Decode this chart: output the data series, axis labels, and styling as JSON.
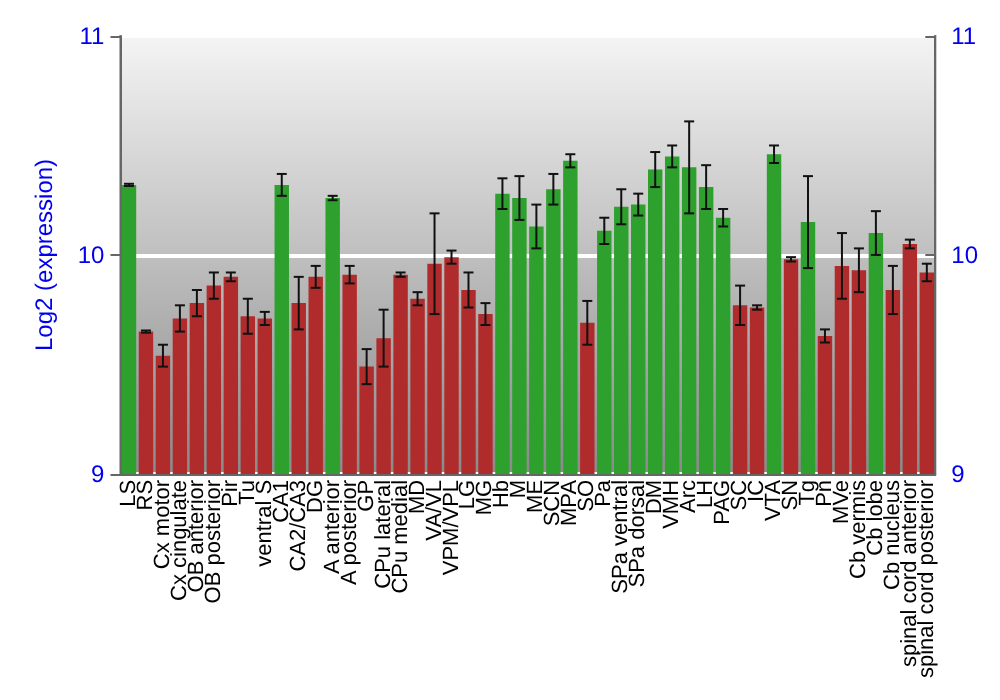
{
  "chart_data": {
    "type": "bar",
    "ylabel": "Log2 (expression)",
    "categories": [
      "LS",
      "RS",
      "Cx motor",
      "Cx cingulate",
      "OB anterior",
      "OB posterior",
      "Pir",
      "Tu",
      "ventral S",
      "CA1",
      "CA2/CA3",
      "DG",
      "A anterior",
      "A posterior",
      "GP",
      "CPu lateral",
      "CPu medial",
      "MD",
      "VA/VL",
      "VPM/VPL",
      "LG",
      "MG",
      "Hb",
      "M",
      "ME",
      "SCN",
      "MPA",
      "SO",
      "Pa",
      "SPa ventral",
      "SPa dorsal",
      "DM",
      "VMH",
      "Arc",
      "LH",
      "PAG",
      "SC",
      "IC",
      "VTA",
      "SN",
      "Tg",
      "Pn",
      "MVe",
      "Cb vermis",
      "Cb lobe",
      "Cb nucleus",
      "spinal cord anterior",
      "spinal cord posterior"
    ],
    "values": [
      10.32,
      9.65,
      9.54,
      9.71,
      9.78,
      9.86,
      9.9,
      9.72,
      9.71,
      10.32,
      9.78,
      9.9,
      10.26,
      9.91,
      9.49,
      9.62,
      9.91,
      9.8,
      9.96,
      9.99,
      9.84,
      9.73,
      10.28,
      10.26,
      10.13,
      10.3,
      10.43,
      9.69,
      10.11,
      10.22,
      10.23,
      10.39,
      10.45,
      10.4,
      10.31,
      10.17,
      9.77,
      9.76,
      10.46,
      9.98,
      10.15,
      9.63,
      9.95,
      9.93,
      10.1,
      9.84,
      10.05,
      9.92
    ],
    "errors": [
      0.005,
      0.005,
      0.05,
      0.06,
      0.06,
      0.06,
      0.02,
      0.08,
      0.03,
      0.05,
      0.12,
      0.05,
      0.01,
      0.04,
      0.08,
      0.13,
      0.01,
      0.03,
      0.23,
      0.03,
      0.08,
      0.05,
      0.07,
      0.1,
      0.1,
      0.07,
      0.03,
      0.1,
      0.06,
      0.08,
      0.05,
      0.08,
      0.05,
      0.21,
      0.1,
      0.04,
      0.09,
      0.01,
      0.04,
      0.01,
      0.21,
      0.03,
      0.15,
      0.1,
      0.1,
      0.11,
      0.02,
      0.04
    ],
    "colors": [
      "#2ea02e",
      "#b02c2c",
      "#b02c2c",
      "#b02c2c",
      "#b02c2c",
      "#b02c2c",
      "#b02c2c",
      "#b02c2c",
      "#b02c2c",
      "#2ea02e",
      "#b02c2c",
      "#b02c2c",
      "#2ea02e",
      "#b02c2c",
      "#b02c2c",
      "#b02c2c",
      "#b02c2c",
      "#b02c2c",
      "#b02c2c",
      "#b02c2c",
      "#b02c2c",
      "#b02c2c",
      "#2ea02e",
      "#2ea02e",
      "#2ea02e",
      "#2ea02e",
      "#2ea02e",
      "#b02c2c",
      "#2ea02e",
      "#2ea02e",
      "#2ea02e",
      "#2ea02e",
      "#2ea02e",
      "#2ea02e",
      "#2ea02e",
      "#2ea02e",
      "#b02c2c",
      "#b02c2c",
      "#2ea02e",
      "#b02c2c",
      "#2ea02e",
      "#b02c2c",
      "#b02c2c",
      "#b02c2c",
      "#2ea02e",
      "#b02c2c",
      "#b02c2c",
      "#b02c2c"
    ],
    "ylim": [
      9,
      11
    ],
    "yticks": [
      9,
      10,
      11
    ],
    "y2lim": [
      9,
      11
    ],
    "y2ticks": [
      9,
      10,
      11
    ],
    "grid": "y"
  }
}
